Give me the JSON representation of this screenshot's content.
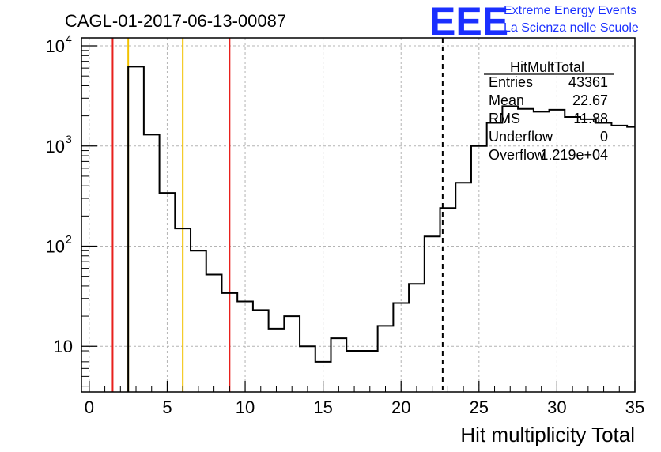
{
  "chart_data": {
    "type": "histogram",
    "title": "CAGL-01-2017-06-13-00087",
    "xlabel": "Hit multiplicity Total",
    "ylabel": "",
    "xlim": [
      -0.5,
      35
    ],
    "ylim": [
      3.5,
      12000
    ],
    "yscale": "log",
    "grid": true,
    "bin_edges": [
      2.5,
      3.5,
      4.5,
      5.5,
      6.5,
      7.5,
      8.5,
      9.5,
      10.5,
      11.5,
      12.5,
      13.5,
      14.5,
      15.5,
      16.5,
      17.5,
      18.5,
      19.5,
      20.5,
      21.5,
      22.5,
      23.5,
      24.5,
      25.5,
      26.5,
      27.5,
      28.5,
      29.5,
      30.5,
      31.5,
      32.5,
      33.5,
      34.5,
      35
    ],
    "counts": [
      6200,
      1300,
      340,
      150,
      90,
      52,
      34,
      28,
      23,
      15,
      20,
      10,
      7,
      12,
      9,
      9,
      16,
      27,
      42,
      125,
      240,
      430,
      1000,
      1700,
      2500,
      2350,
      2200,
      2300,
      1950,
      1850,
      1700,
      1600,
      1550
    ],
    "x_ticks": [
      "0",
      "5",
      "10",
      "15",
      "20",
      "25",
      "30",
      "35"
    ],
    "x_tick_values": [
      0,
      5,
      10,
      15,
      20,
      25,
      30,
      35
    ],
    "y_ticks": [
      {
        "value": 10,
        "base": "10",
        "exp": ""
      },
      {
        "value": 100,
        "base": "10",
        "exp": "2"
      },
      {
        "value": 1000,
        "base": "10",
        "exp": "3"
      },
      {
        "value": 10000,
        "base": "10",
        "exp": "4"
      }
    ],
    "vertical_lines": [
      {
        "x": 1.5,
        "color": "#e8201c",
        "style": "solid"
      },
      {
        "x": 2.5,
        "color": "#f2c200",
        "style": "solid"
      },
      {
        "x": 6,
        "color": "#f2c200",
        "style": "solid"
      },
      {
        "x": 9,
        "color": "#e8201c",
        "style": "solid"
      },
      {
        "x": 22.67,
        "color": "#000000",
        "style": "dashed"
      }
    ],
    "stats_box": {
      "title": "HitMultTotal",
      "rows": [
        {
          "label": "Entries",
          "value": "43361"
        },
        {
          "label": "Mean",
          "value": "22.67"
        },
        {
          "label": "RMS",
          "value": "11.88"
        },
        {
          "label": "Underflow",
          "value": "0"
        },
        {
          "label": "Overflow",
          "value": "1.219e+04"
        }
      ]
    }
  },
  "branding": {
    "logo_text": "EEE",
    "line1": "Extreme Energy Events",
    "line2": "La Scienza nelle Scuole",
    "color": "#1a2fff"
  }
}
